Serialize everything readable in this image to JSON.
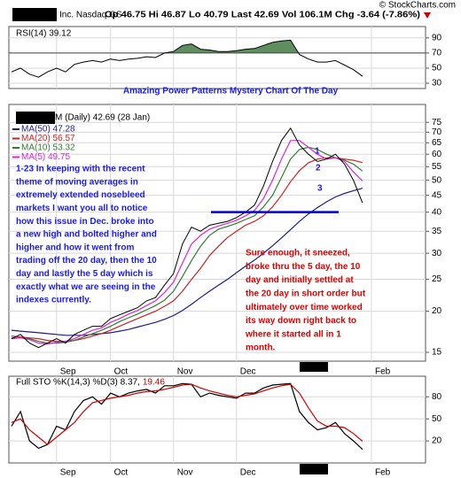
{
  "header": {
    "name": "Inc. Nasdaq GS",
    "quote": "Op 46.75 Hi 46.87 Lo 40.79 Last 42.69 Vol 106.1M Chg -3.64 (-7.86%)",
    "source": "© StockCharts.com"
  },
  "chart_data": [
    {
      "type": "line",
      "title": "RSI(14) 39.12",
      "ylim": [
        23,
        105
      ],
      "yticks": [
        30,
        50,
        70,
        90
      ],
      "grid": true,
      "overbought": 70,
      "shade_color": "#5f8f5f",
      "color": "#000000",
      "values": [
        45,
        50,
        42,
        38,
        45,
        50,
        45,
        55,
        58,
        60,
        58,
        62,
        60,
        62,
        63,
        65,
        64,
        70,
        72,
        80,
        82,
        75,
        74,
        72,
        72,
        73,
        75,
        76,
        80,
        84,
        86,
        87,
        68,
        62,
        58,
        58,
        60,
        54,
        48,
        39.12,
        null
      ]
    },
    {
      "type": "line",
      "title": "Amazing Power Patterns Mystery Chart Of The Day",
      "title_color": "#1a1aee",
      "label": "M (Daily) 42.69 (28 Jan)",
      "log_scale": true,
      "grid": true,
      "ylim": [
        14.1,
        85
      ],
      "yticks": [
        15,
        20,
        25,
        30,
        35,
        40,
        45,
        50,
        55,
        60,
        65,
        70,
        75
      ],
      "categories": [
        null,
        null,
        null,
        null,
        null,
        "Sep",
        null,
        null,
        null,
        null,
        null,
        "Oct",
        null,
        null,
        null,
        null,
        null,
        null,
        "Nov",
        null,
        null,
        null,
        null,
        null,
        null,
        "Dec",
        null,
        null,
        null,
        null,
        null,
        null,
        null,
        null,
        null,
        null,
        null,
        null,
        null,
        null,
        "Feb"
      ],
      "color": "#000000",
      "values": [
        16.5,
        17,
        16,
        15.5,
        16,
        16.5,
        16,
        17,
        17.5,
        18,
        18,
        19,
        19.5,
        20,
        20.5,
        21.5,
        22,
        24,
        26,
        32,
        36,
        35,
        36.5,
        37,
        37.5,
        38.5,
        40,
        42,
        48,
        57,
        66,
        72,
        64,
        60,
        57,
        58,
        60,
        56,
        50,
        42.69,
        null
      ],
      "series": [
        {
          "name": "MA(50) 47.28",
          "color": "#1c1c8c",
          "values": [
            17.5,
            17.4,
            17.3,
            17.2,
            17.1,
            17,
            16.9,
            16.9,
            16.9,
            17,
            17.1,
            17.2,
            17.4,
            17.6,
            17.9,
            18.2,
            18.5,
            18.9,
            19.4,
            20.1,
            21,
            22,
            23,
            24,
            25,
            26.2,
            27.4,
            28.6,
            30,
            31.6,
            33.4,
            35.4,
            37.5,
            39.5,
            41.3,
            43,
            44.5,
            45.6,
            46.5,
            47.28,
            null
          ]
        },
        {
          "name": "MA(20) 56.57",
          "color": "#cc2222",
          "values": [
            16.8,
            16.7,
            16.6,
            16.5,
            16.3,
            16.2,
            16.2,
            16.3,
            16.5,
            16.8,
            17.1,
            17.5,
            18,
            18.5,
            19,
            19.5,
            20,
            20.7,
            21.5,
            23,
            25,
            27,
            29.5,
            31.5,
            33.5,
            35,
            36.5,
            37.5,
            39,
            41.5,
            45,
            49.5,
            53.5,
            56.5,
            58,
            58.5,
            58.5,
            58,
            57.5,
            56.57,
            null
          ]
        },
        {
          "name": "MA(10) 53.32",
          "color": "#2e7d2e",
          "values": [
            16.6,
            16.6,
            16.5,
            16.2,
            16,
            16,
            16.1,
            16.3,
            16.7,
            17.1,
            17.5,
            18,
            18.6,
            19.1,
            19.6,
            20.2,
            20.8,
            21.6,
            23,
            25.5,
            28.5,
            31.5,
            34,
            35.5,
            36.2,
            37,
            38,
            39,
            41.5,
            45,
            51,
            58,
            62,
            63,
            62,
            60,
            58.5,
            57.5,
            56,
            53.32,
            null
          ]
        },
        {
          "name": "MA(5) 49.75",
          "color": "#dd22dd",
          "values": [
            16.5,
            16.6,
            16.4,
            16,
            15.9,
            16.1,
            16.2,
            16.5,
            17,
            17.5,
            17.8,
            18.5,
            19,
            19.6,
            20.1,
            20.8,
            21.5,
            22.8,
            24.5,
            28,
            32,
            34,
            35.5,
            36.3,
            37,
            37.8,
            39,
            40.5,
            44,
            50,
            58,
            66,
            66,
            63,
            60,
            58,
            58.5,
            57,
            53,
            49.75,
            null
          ]
        }
      ],
      "reference_line": 40,
      "reference_color": "#0000cc",
      "markers": [
        "1",
        "2",
        "3"
      ],
      "marker_color": "#1a1aee",
      "note_left": {
        "color": "#1a1aee",
        "lines": [
          "1-23 In keeping with the recent",
          "theme of moving averages in",
          "extremely extended nosebleed",
          "markets I want you all to notice",
          "how this issue in Dec.  broke into",
          "a new high and bolted higher and",
          "higher and how it went from",
          "trading off the 20 day, then the 10",
          "day and lastly the 5 day which is",
          "exactly what we are seeing in the",
          "indexes currently."
        ]
      },
      "note_right": {
        "color": "#dd0000",
        "lines": [
          "Sure enough, it sneezed,",
          "broke thru the 5 day, the 10",
          "day and initially settled at",
          "the 20 day in short order but",
          "ultimately over time worked",
          "its way down right back to",
          "where it started all in 1",
          "month."
        ]
      }
    },
    {
      "type": "line",
      "title": "Full STO %K(14,3) %D(3) 8.37,",
      "title_value": "19.46",
      "title_value_color": "#cc0000",
      "ylim": [
        -10,
        108
      ],
      "yticks": [
        20,
        50,
        80
      ],
      "grid": true,
      "categories": [
        null,
        null,
        null,
        null,
        null,
        "Sep",
        null,
        null,
        null,
        null,
        null,
        "Oct",
        null,
        null,
        null,
        null,
        null,
        null,
        "Nov",
        null,
        null,
        null,
        null,
        null,
        null,
        "Dec",
        null,
        null,
        null,
        null,
        null,
        null,
        null,
        null,
        null,
        null,
        null,
        null,
        null,
        null,
        "Feb"
      ],
      "series": [
        {
          "color": "#000000",
          "values": [
            40,
            60,
            20,
            10,
            15,
            40,
            35,
            60,
            75,
            80,
            70,
            85,
            80,
            85,
            88,
            90,
            85,
            95,
            95,
            98,
            97,
            80,
            85,
            82,
            80,
            78,
            85,
            85,
            92,
            96,
            97,
            98,
            60,
            45,
            35,
            38,
            45,
            30,
            20,
            8.37,
            null
          ]
        },
        {
          "color": "#cc0000",
          "values": [
            45,
            50,
            35,
            25,
            15,
            25,
            35,
            45,
            60,
            72,
            75,
            78,
            80,
            82,
            85,
            87,
            88,
            90,
            93,
            96,
            97,
            92,
            88,
            85,
            82,
            80,
            82,
            84,
            88,
            92,
            95,
            97,
            85,
            65,
            47,
            40,
            40,
            38,
            30,
            19.46,
            null
          ]
        }
      ]
    }
  ]
}
